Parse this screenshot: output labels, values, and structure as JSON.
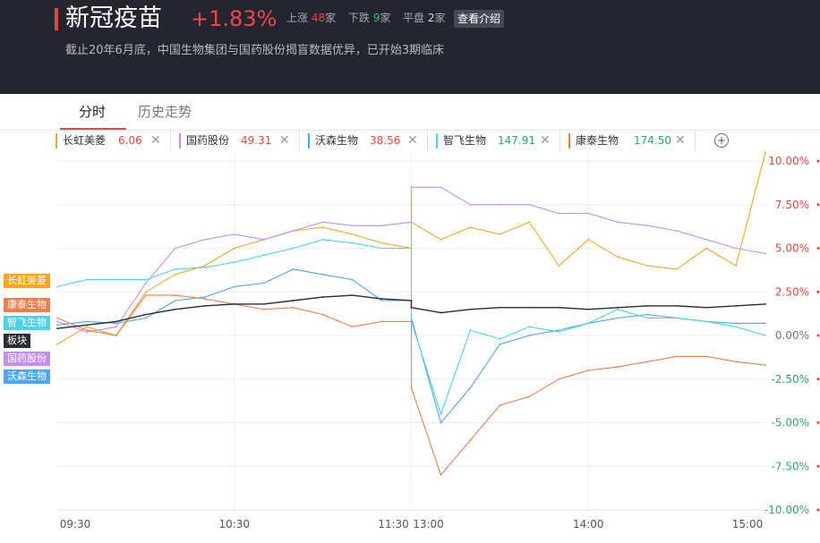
{
  "header": {
    "title": "新冠疫苗",
    "change_pct": "+1.83%",
    "up_label": "上涨",
    "up_count": "48",
    "up_unit": "家",
    "down_label": "下跌",
    "down_count": "9",
    "down_unit": "家",
    "flat_label": "平盘",
    "flat_count": "2",
    "flat_unit": "家",
    "intro_button": "查看介绍",
    "description": "截止20年6月底，中国生物集团与国药股份揭盲数据优异，已开始3期临床"
  },
  "tabs": [
    {
      "label": "分时",
      "active": true
    },
    {
      "label": "历史走势",
      "active": false
    }
  ],
  "compare_stocks": [
    {
      "name": "长虹美菱",
      "price": "6.06",
      "color": "#f5a623",
      "price_color": "#e8463c"
    },
    {
      "name": "国药股份",
      "price": "49.31",
      "color": "#c38ef0",
      "price_color": "#e8463c"
    },
    {
      "name": "沃森生物",
      "price": "38.56",
      "color": "#4aa8f0",
      "price_color": "#e8463c"
    },
    {
      "name": "智飞生物",
      "price": "147.91",
      "color": "#4dd3e8",
      "price_color": "#2ea86a"
    },
    {
      "name": "康泰生物",
      "price": "174.50",
      "color": "#f07d4a",
      "price_color": "#2ea86a"
    }
  ],
  "close_glyph": "✕",
  "add_glyph": "+",
  "left_tags": [
    {
      "label": "长虹美菱",
      "color": "#f5a623"
    },
    {
      "label": "康泰生物",
      "color": "#f07d4a"
    },
    {
      "label": "智飞生物",
      "color": "#4dd3e8"
    },
    {
      "label": "板块",
      "color": "#2b2d36"
    },
    {
      "label": "国药股份",
      "color": "#c38ef0"
    },
    {
      "label": "沃森生物",
      "color": "#4aa8f0"
    }
  ],
  "chart_data": {
    "type": "line",
    "x_ticks": [
      "09:30",
      "10:30",
      "11:30",
      "13:00",
      "14:00",
      "15:00"
    ],
    "y_ticks": [
      "10.00%",
      "7.50%",
      "5.00%",
      "2.50%",
      "0.00%",
      "-2.50%",
      "-5.00%",
      "-7.50%",
      "-10.00%"
    ],
    "ylim": [
      -10,
      10
    ],
    "y_unit": "%",
    "grid": true,
    "x": [
      "09:30",
      "09:40",
      "09:50",
      "10:00",
      "10:10",
      "10:20",
      "10:30",
      "10:40",
      "10:50",
      "11:00",
      "11:10",
      "11:20",
      "11:30",
      "13:00",
      "13:10",
      "13:20",
      "13:30",
      "13:40",
      "13:50",
      "14:00",
      "14:10",
      "14:20",
      "14:30",
      "14:40",
      "14:50",
      "15:00"
    ],
    "series": [
      {
        "name": "长虹美菱",
        "color": "#f5a623",
        "values": [
          -0.5,
          0.5,
          0.0,
          2.5,
          3.5,
          4.0,
          5.0,
          5.5,
          6.0,
          6.2,
          5.8,
          5.3,
          5.0,
          6.5,
          5.5,
          6.2,
          5.8,
          6.5,
          4.0,
          5.5,
          4.5,
          4.0,
          3.8,
          5.0,
          4.0,
          10.5
        ]
      },
      {
        "name": "国药股份",
        "color": "#c38ef0",
        "values": [
          0.8,
          0.2,
          0.5,
          3.0,
          5.0,
          5.5,
          5.8,
          5.5,
          6.0,
          6.5,
          6.3,
          6.3,
          6.5,
          8.5,
          8.5,
          7.5,
          7.5,
          7.5,
          7.0,
          7.0,
          6.5,
          6.3,
          6.0,
          5.5,
          5.0,
          4.7
        ]
      },
      {
        "name": "沃森生物",
        "color": "#4aa8f0",
        "values": [
          0.6,
          0.8,
          0.7,
          1.0,
          2.0,
          2.2,
          2.8,
          3.0,
          3.8,
          3.5,
          3.2,
          2.0,
          2.0,
          1.0,
          -5.0,
          -3.0,
          -0.5,
          0.0,
          0.3,
          0.7,
          1.0,
          1.2,
          1.0,
          0.8,
          0.7,
          0.7
        ]
      },
      {
        "name": "智飞生物",
        "color": "#4dd3e8",
        "values": [
          2.8,
          3.2,
          3.2,
          3.2,
          3.8,
          3.9,
          4.2,
          4.6,
          5.0,
          5.5,
          5.3,
          5.0,
          5.0,
          0.8,
          -4.5,
          0.3,
          -0.2,
          0.5,
          0.2,
          0.7,
          1.5,
          1.0,
          1.0,
          0.8,
          0.5,
          0.0
        ]
      },
      {
        "name": "康泰生物",
        "color": "#f07d4a",
        "values": [
          1.0,
          0.3,
          0.0,
          2.3,
          2.3,
          2.1,
          1.8,
          1.5,
          1.6,
          1.2,
          0.5,
          0.8,
          0.8,
          -3.0,
          -8.0,
          -6.0,
          -4.0,
          -3.5,
          -2.5,
          -2.0,
          -1.8,
          -1.5,
          -1.2,
          -1.2,
          -1.5,
          -1.7
        ]
      },
      {
        "name": "板块",
        "color": "#2b2d36",
        "values": [
          0.4,
          0.6,
          0.8,
          1.2,
          1.5,
          1.7,
          1.8,
          1.8,
          2.0,
          2.2,
          2.3,
          2.1,
          2.0,
          1.6,
          1.3,
          1.5,
          1.6,
          1.6,
          1.6,
          1.5,
          1.6,
          1.7,
          1.7,
          1.6,
          1.7,
          1.8
        ]
      }
    ]
  }
}
